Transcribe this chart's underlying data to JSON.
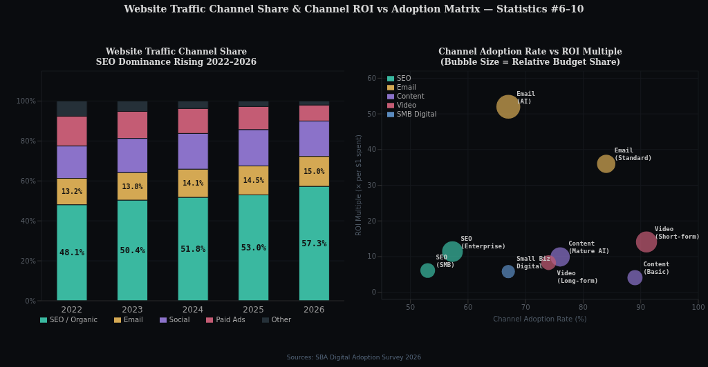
{
  "chart_data": [
    {
      "type": "bar",
      "title": "Website Traffic Channel Share",
      "subtitle": "SEO Dominance Rising 2022–2026",
      "annotations": [
        "Website Traffic Channel Share & Channel ROI vs Adoption Matrix — Statistics #6–10"
      ],
      "categories": [
        "2022",
        "2023",
        "2024",
        "2025",
        "2026"
      ],
      "stacked": true,
      "series": [
        {
          "name": "SEO / Organic",
          "color": "#3ab8a0",
          "values": [
            48.1,
            50.4,
            51.8,
            53.0,
            57.3
          ],
          "value_labels": [
            "48.1%",
            "50.4%",
            "51.8%",
            "53.0%",
            "57.3%"
          ]
        },
        {
          "name": "Email",
          "color": "#d4a853",
          "values": [
            13.2,
            13.8,
            14.1,
            14.5,
            15.0
          ],
          "value_labels": [
            "13.2%",
            "13.8%",
            "14.1%",
            "14.5%",
            "15.0%"
          ]
        },
        {
          "name": "Social",
          "color": "#8b72c9",
          "values": [
            16.2,
            17.1,
            17.9,
            18.2,
            17.7
          ]
        },
        {
          "name": "Paid Ads",
          "color": "#c45c74",
          "values": [
            14.9,
            13.5,
            12.5,
            11.6,
            8.0
          ]
        },
        {
          "name": "Other",
          "color": "#253038",
          "values": [
            7.6,
            5.2,
            3.7,
            2.7,
            2.0
          ]
        }
      ],
      "ylim": [
        0,
        115
      ],
      "yticks": [
        {
          "value": 0,
          "label": "0%"
        },
        {
          "value": 20,
          "label": "20%"
        },
        {
          "value": 40,
          "label": "40%"
        },
        {
          "value": 60,
          "label": "60%"
        },
        {
          "value": 80,
          "label": "80%"
        },
        {
          "value": 100,
          "label": "100%"
        }
      ],
      "grid": "y",
      "legend": "bottom"
    },
    {
      "type": "bubble",
      "title": "Channel Adoption Rate vs ROI Multiple",
      "subtitle": "(Bubble Size = Relative Budget Share)",
      "xlabel": "Channel Adoption Rate (%)",
      "ylabel": "ROI Multiple (× per $1 spent)",
      "series": [
        {
          "name": "SEO",
          "color": "#3ab8a0",
          "x": [
            53,
            57.3
          ],
          "values": [
            6.1,
            11.4
          ],
          "sizes": [
            0.38,
            0.75
          ]
        },
        {
          "name": "Email",
          "color": "#d4a853",
          "x": [
            67,
            84
          ],
          "values": [
            52,
            36
          ],
          "sizes": [
            1,
            0.59
          ]
        },
        {
          "name": "Content",
          "color": "#8b72c9",
          "x": [
            76,
            89
          ],
          "values": [
            9.9,
            4.1
          ],
          "sizes": [
            0.65,
            0.4
          ]
        },
        {
          "name": "Video",
          "color": "#c45c74",
          "x": [
            91,
            74
          ],
          "values": [
            14.1,
            8.3
          ],
          "sizes": [
            0.78,
            0.38
          ]
        },
        {
          "name": "SMB Digital",
          "color": "#5b8bbf",
          "x": [
            67
          ],
          "values": [
            5.8
          ],
          "sizes": [
            0.31
          ]
        }
      ],
      "annotations": [
        {
          "text": "SEO\n(SMB)",
          "x": 53,
          "y": 6.1
        },
        {
          "text": "SEO\n(Enterprise)",
          "x": 57.3,
          "y": 11.4
        },
        {
          "text": "Email\n(AI)",
          "x": 67,
          "y": 52
        },
        {
          "text": "Email\n(Standard)",
          "x": 84,
          "y": 36
        },
        {
          "text": "Content\n(Mature AI)",
          "x": 76,
          "y": 9.9
        },
        {
          "text": "Content\n(Basic)",
          "x": 89,
          "y": 4.1
        },
        {
          "text": "Video\n(Short-form)",
          "x": 91,
          "y": 14.1
        },
        {
          "text": "Video\n(Long-form)",
          "x": 74,
          "y": 8.3
        },
        {
          "text": "Small Biz\nDigital",
          "x": 67,
          "y": 5.8
        },
        "Sources: SBA Digital Adoption Survey 2026"
      ],
      "xlim": [
        45,
        100
      ],
      "xticks": [
        50,
        60,
        70,
        80,
        90,
        100
      ],
      "ylim": [
        -2,
        62
      ],
      "yticks": [
        0,
        10,
        20,
        30,
        40,
        50,
        60
      ],
      "grid": true,
      "legend": "top left"
    }
  ]
}
